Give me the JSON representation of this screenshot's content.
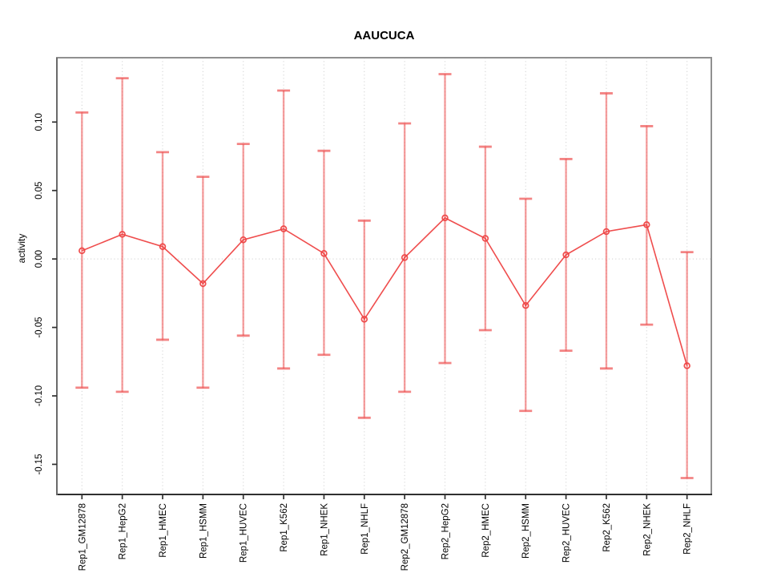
{
  "chart_data": {
    "type": "line",
    "title": "AAUCUCA",
    "xlabel": "",
    "ylabel": "activity",
    "categories": [
      "Rep1_GM12878",
      "Rep1_HepG2",
      "Rep1_HMEC",
      "Rep1_HSMM",
      "Rep1_HUVEC",
      "Rep1_K562",
      "Rep1_NHEK",
      "Rep1_NHLF",
      "Rep2_GM12878",
      "Rep2_HepG2",
      "Rep2_HMEC",
      "Rep2_HSMM",
      "Rep2_HUVEC",
      "Rep2_K562",
      "Rep2_NHEK",
      "Rep2_NHLF"
    ],
    "series": [
      {
        "name": "activity",
        "marker": "open-circle",
        "values": [
          0.006,
          0.018,
          0.009,
          -0.018,
          0.014,
          0.022,
          0.004,
          -0.044,
          0.001,
          0.03,
          0.015,
          -0.034,
          0.003,
          0.02,
          0.025,
          -0.078
        ],
        "error_high": [
          0.107,
          0.132,
          0.078,
          0.06,
          0.084,
          0.123,
          0.079,
          0.028,
          0.099,
          0.135,
          0.082,
          0.044,
          0.073,
          0.121,
          0.097,
          0.005
        ],
        "error_low": [
          -0.094,
          -0.097,
          -0.059,
          -0.094,
          -0.056,
          -0.08,
          -0.07,
          -0.116,
          -0.097,
          -0.076,
          -0.052,
          -0.111,
          -0.067,
          -0.08,
          -0.048,
          -0.16
        ]
      }
    ],
    "ylim": [
      -0.172,
      0.147
    ],
    "yticks": [
      0.1,
      0.05,
      0.0,
      -0.05,
      -0.1,
      -0.15
    ],
    "ytick_labels": [
      "0.10",
      "0.05",
      "0.00",
      "-0.05",
      "-0.10",
      "-0.15"
    ],
    "grid": {
      "vertical": "dotted line at each category",
      "horizontal": "dotted line at y=0 only"
    },
    "legend": "none",
    "colors": {
      "series": "#ee4343",
      "error_bar": "#ee5050",
      "grid": "#d9d9d9",
      "frame": "#909090",
      "axis": "#303030",
      "title": "#000000",
      "background": "#ffffff"
    }
  }
}
